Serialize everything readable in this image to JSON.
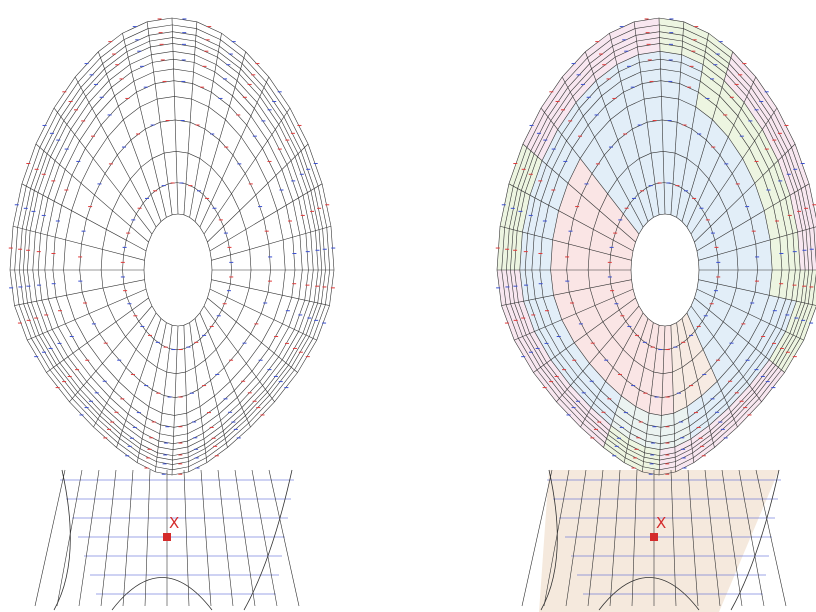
{
  "panels": [
    {
      "marker_label": "X"
    },
    {
      "marker_label": "X"
    }
  ]
}
